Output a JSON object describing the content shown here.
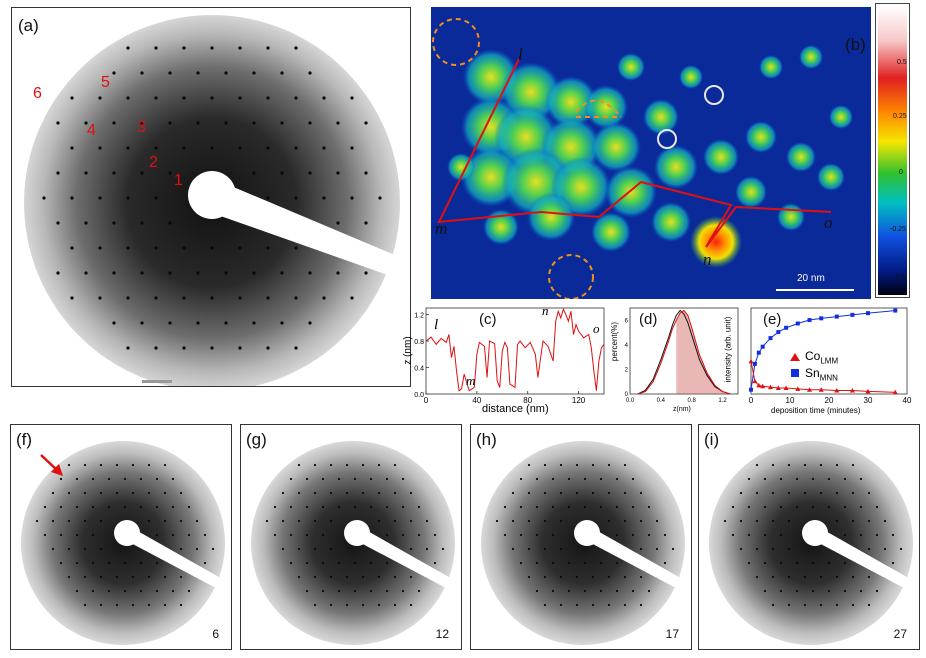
{
  "panel_a": {
    "label": "(a)",
    "spot_labels": [
      "1",
      "2",
      "3",
      "4",
      "5",
      "6"
    ]
  },
  "panel_b": {
    "label": "(b)",
    "points": [
      "l",
      "m",
      "n",
      "o"
    ],
    "scale_bar": "20 nm",
    "colorbar_ticks": [
      "0.5",
      "0.25",
      "0",
      "-0.25",
      "-0.5"
    ]
  },
  "panel_c": {
    "label": "(c)",
    "xlabel": "distance (nm)",
    "ylabel": "z (nm)",
    "xticks": [
      "0",
      "40",
      "80",
      "120"
    ],
    "yticks": [
      "0.0",
      "0.4",
      "0.8",
      "1.2"
    ],
    "points": [
      "l",
      "m",
      "n",
      "o"
    ]
  },
  "panel_d": {
    "label": "(d)",
    "xlabel": "z(nm)",
    "ylabel": "percent(%)",
    "xticks": [
      "0.0",
      "0.4",
      "0.8",
      "1.2"
    ],
    "yticks": [
      "0",
      "2",
      "4",
      "6"
    ]
  },
  "panel_e": {
    "label": "(e)",
    "xlabel": "deposition time (minutes)",
    "ylabel": "intensity (arb. unit)",
    "xticks": [
      "0",
      "10",
      "20",
      "30",
      "40"
    ],
    "legend": [
      {
        "base": "Co",
        "sub": "LMM",
        "color": "#e01010"
      },
      {
        "base": "Sn",
        "sub": "MNN",
        "color": "#1030e0"
      }
    ]
  },
  "leed_series": [
    {
      "label": "(f)",
      "time": "6"
    },
    {
      "label": "(g)",
      "time": "12"
    },
    {
      "label": "(h)",
      "time": "17"
    },
    {
      "label": "(i)",
      "time": "27"
    }
  ],
  "chart_data": [
    {
      "type": "line",
      "xlabel": "distance (nm)",
      "ylabel": "z (nm)",
      "xlim": [
        0,
        140
      ],
      "ylim": [
        0,
        1.3
      ],
      "x": [
        0,
        4,
        8,
        12,
        16,
        18,
        20,
        22,
        24,
        26,
        28,
        30,
        34,
        38,
        40,
        42,
        46,
        48,
        50,
        54,
        56,
        58,
        60,
        62,
        64,
        66,
        70,
        72,
        74,
        78,
        82,
        86,
        88,
        92,
        96,
        100,
        102,
        104,
        106,
        108,
        110,
        112,
        114,
        116,
        118,
        120,
        124,
        128,
        130,
        132,
        134,
        136,
        138,
        140
      ],
      "series": [
        {
          "values": [
            0.8,
            0.86,
            0.75,
            0.84,
            0.78,
            0.9,
            0.55,
            0.72,
            0.35,
            0.05,
            0.08,
            0.3,
            0.05,
            0.1,
            0.6,
            0.78,
            0.72,
            0.25,
            0.8,
            0.76,
            0.2,
            0.1,
            0.65,
            0.78,
            0.7,
            0.15,
            0.1,
            0.75,
            0.8,
            0.7,
            0.78,
            0.6,
            0.25,
            0.8,
            0.72,
            0.5,
            1.1,
            1.25,
            1.15,
            1.28,
            1.2,
            1.1,
            1.25,
            0.9,
            1.05,
            0.95,
            0.85,
            0.9,
            0.7,
            0.35,
            0.05,
            0.5,
            0.7,
            0.75
          ]
        }
      ]
    },
    {
      "type": "area",
      "xlabel": "z(nm)",
      "ylabel": "percent(%)",
      "xlim": [
        0,
        1.4
      ],
      "ylim": [
        0,
        7
      ],
      "x": [
        0.1,
        0.2,
        0.3,
        0.4,
        0.5,
        0.55,
        0.6,
        0.65,
        0.7,
        0.75,
        0.8,
        0.85,
        0.9,
        1.0,
        1.1,
        1.2,
        1.3
      ],
      "series": [
        {
          "values": [
            0,
            0.3,
            1.2,
            2.8,
            4.6,
            5.6,
            6.4,
            6.8,
            6.5,
            5.8,
            4.8,
            3.8,
            2.8,
            1.5,
            0.6,
            0.2,
            0
          ]
        },
        {
          "values": [
            0,
            0.2,
            1.0,
            2.5,
            4.3,
            5.3,
            6.0,
            6.6,
            6.8,
            6.4,
            5.4,
            4.3,
            3.2,
            1.7,
            0.7,
            0.2,
            0
          ]
        }
      ]
    },
    {
      "type": "line",
      "xlabel": "deposition time (minutes)",
      "ylabel": "intensity (arb. unit)",
      "xlim": [
        0,
        40
      ],
      "ylim": [
        0,
        1
      ],
      "x": [
        0,
        1,
        2,
        3,
        5,
        7,
        9,
        12,
        15,
        18,
        22,
        26,
        30,
        37
      ],
      "series": [
        {
          "name": "CoLMM",
          "values": [
            0.38,
            0.15,
            0.1,
            0.09,
            0.08,
            0.07,
            0.07,
            0.06,
            0.05,
            0.05,
            0.04,
            0.04,
            0.03,
            0.02
          ]
        },
        {
          "name": "SnMNN",
          "values": [
            0.05,
            0.35,
            0.48,
            0.55,
            0.65,
            0.72,
            0.77,
            0.82,
            0.86,
            0.88,
            0.9,
            0.92,
            0.94,
            0.97
          ]
        }
      ]
    }
  ]
}
